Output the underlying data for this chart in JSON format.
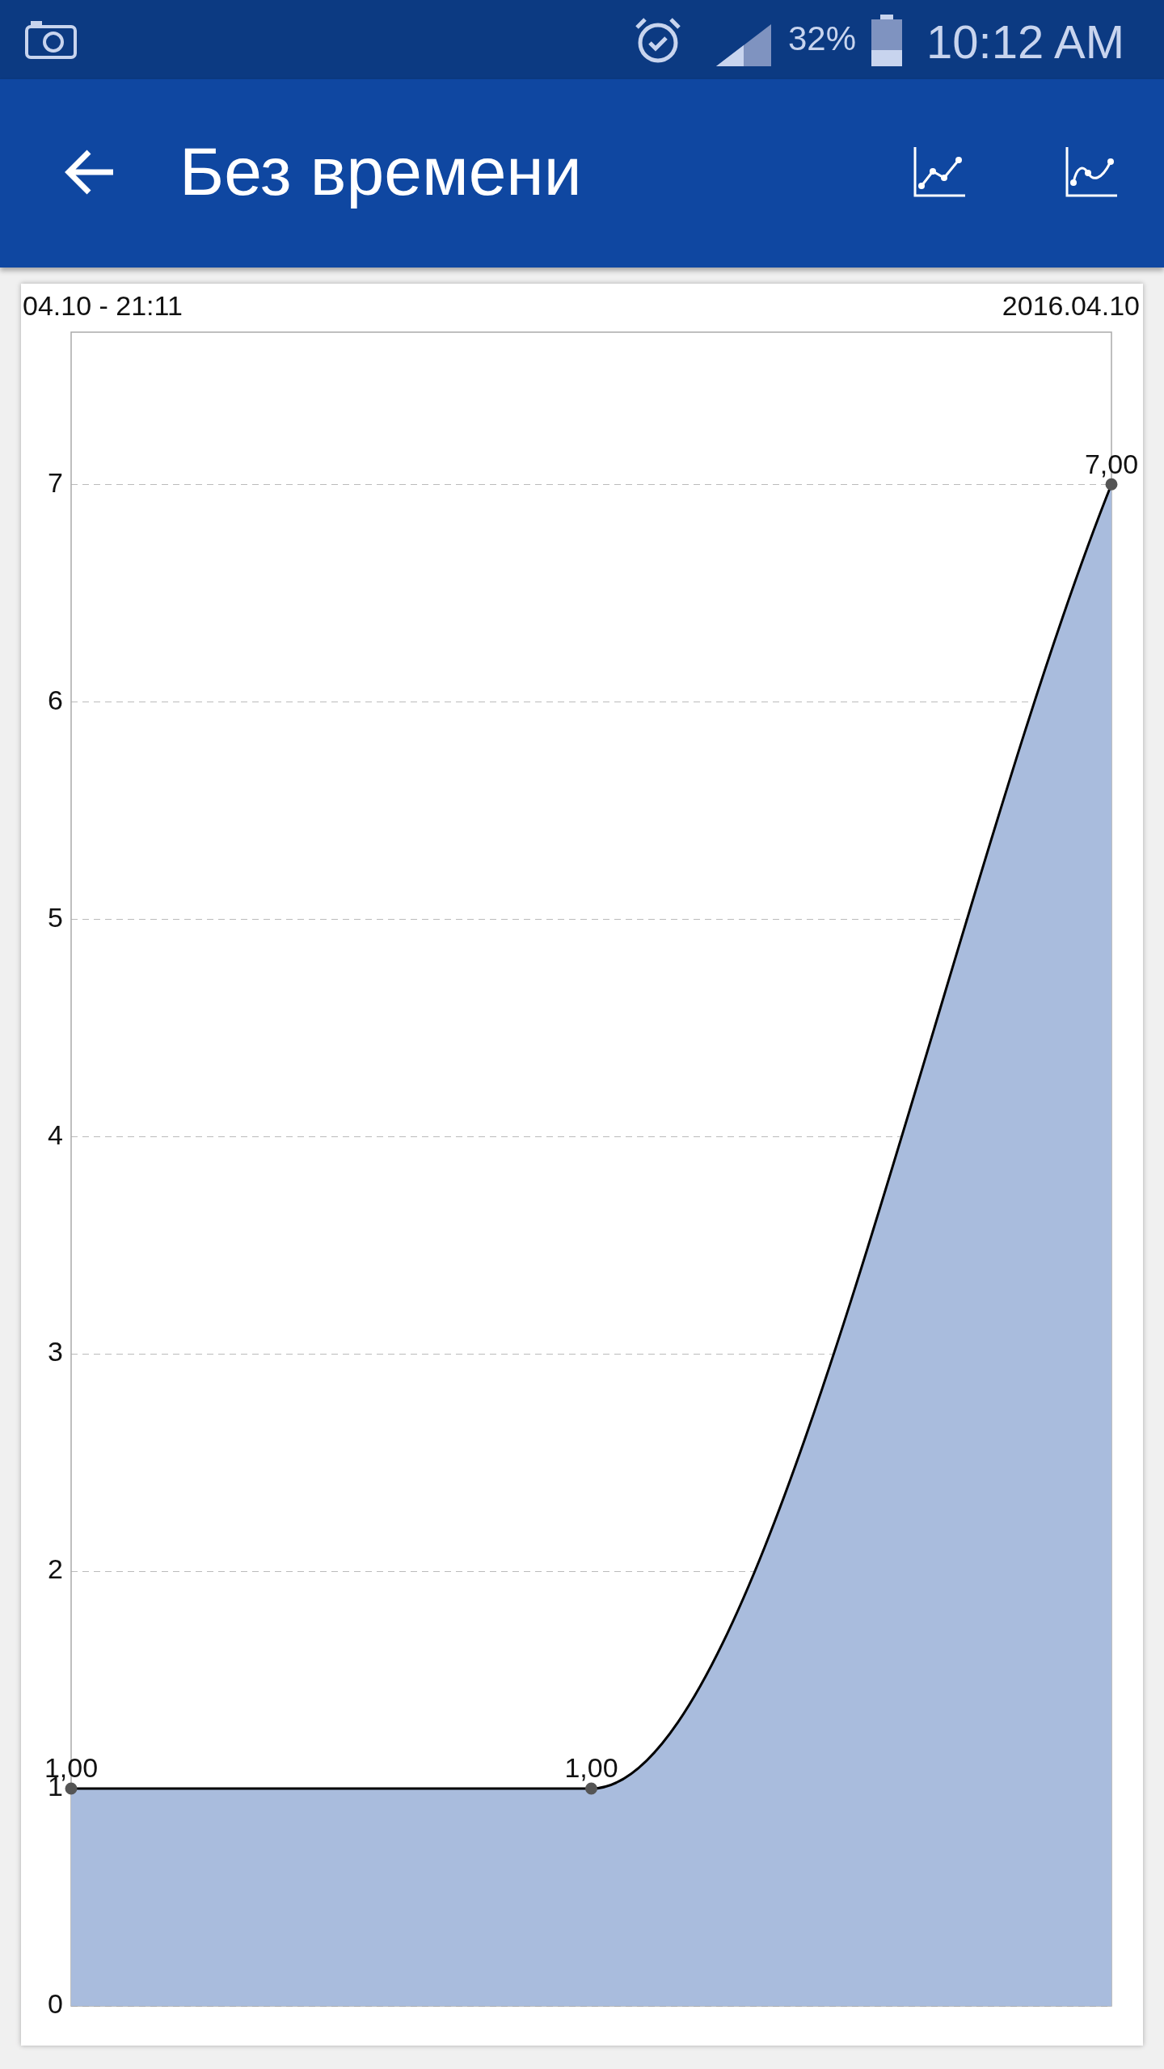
{
  "chart_data": {
    "type": "area",
    "title": "Без времени",
    "annotations": [
      "04.10 - 21:11",
      "2016.04.10",
      "32%",
      "10:12 AM"
    ],
    "categories": [
      null,
      null,
      null
    ],
    "series": [
      {
        "color": "#a9bcdd",
        "values": [
          1,
          1,
          7
        ],
        "value_labels": [
          "1,00",
          "1,00",
          "7,00"
        ]
      }
    ],
    "ylim": [
      0,
      7.7
    ],
    "yticks": [
      0,
      1,
      2,
      3,
      4,
      5,
      6,
      7
    ],
    "grid": "y",
    "marker": "circle",
    "line_style": "solid",
    "legend": false
  }
}
